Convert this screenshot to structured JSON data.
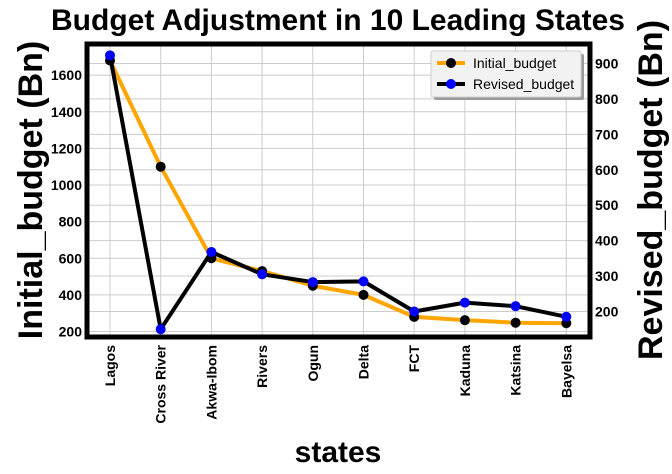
{
  "chart_data": {
    "type": "line",
    "title": "Budget Adjustment in 10 Leading States",
    "xlabel": "states",
    "ylabel": "Initial_budget (Bn)",
    "ylabel_right": "Revised_budget (Bn)",
    "categories": [
      "Lagos",
      "Cross River",
      "Akwa-Ibom",
      "Rivers",
      "Ogun",
      "Delta",
      "FCT",
      "Kaduna",
      "Katsina",
      "Bayelsa"
    ],
    "series": [
      {
        "name": "Initial_budget",
        "axis": "left",
        "color": "#FFA500",
        "marker_color": "#000000",
        "values": [
          1680,
          1100,
          600,
          530,
          450,
          400,
          280,
          262,
          248,
          245
        ]
      },
      {
        "name": "Revised_budget",
        "axis": "right",
        "color": "#000000",
        "marker_color": "#0000FF",
        "values": [
          923,
          150,
          368,
          305,
          283,
          285,
          200,
          225,
          215,
          185
        ]
      }
    ],
    "ylim_left": [
      170,
      1770
    ],
    "ylim_right": [
      128,
      955
    ],
    "yticks_left": [
      200,
      400,
      600,
      800,
      1000,
      1200,
      1400,
      1600
    ],
    "yticks_right": [
      200,
      300,
      400,
      500,
      600,
      700,
      800,
      900
    ],
    "grid": true,
    "legend_position": "top-right"
  }
}
